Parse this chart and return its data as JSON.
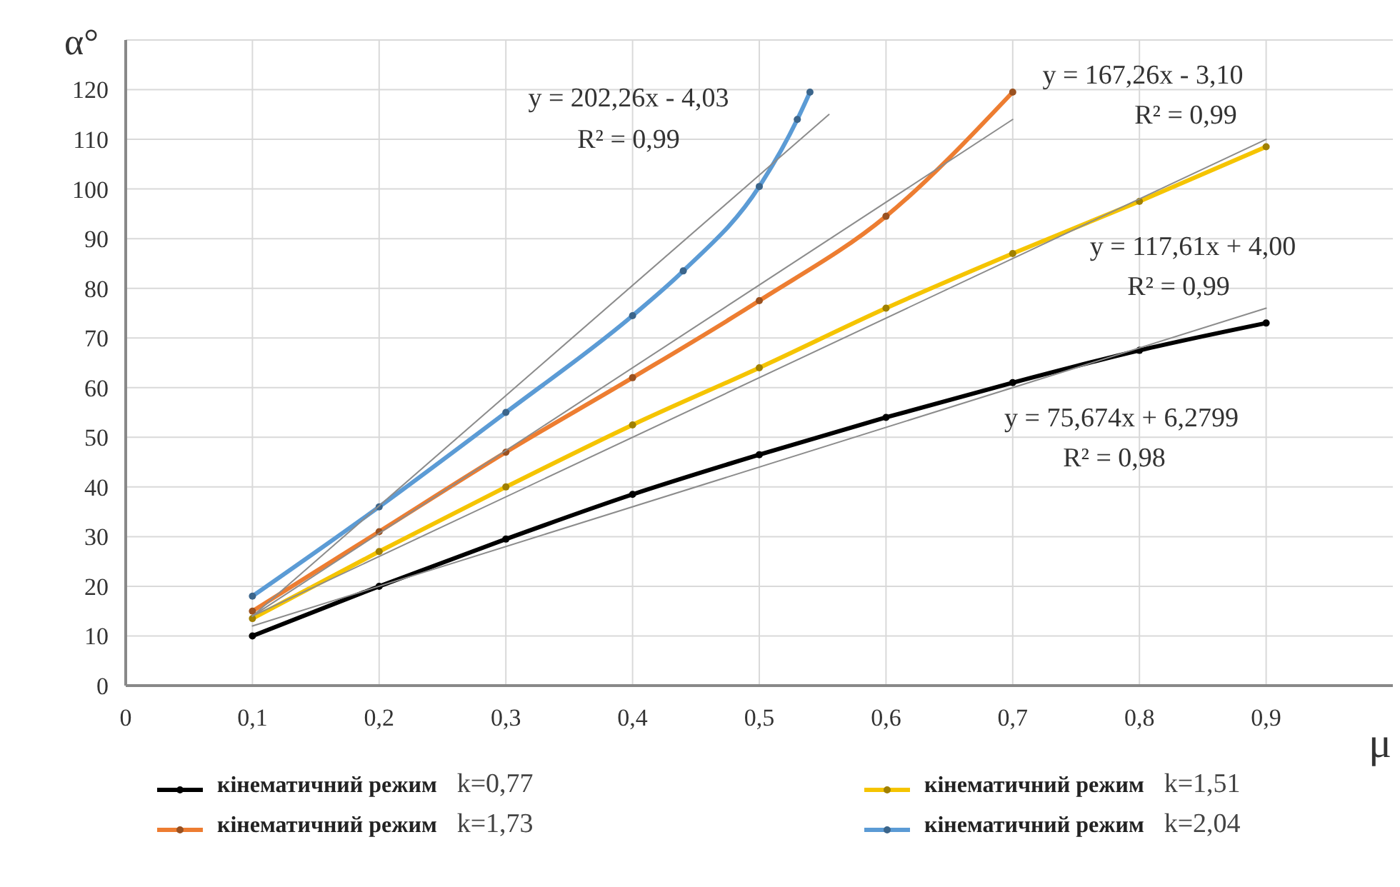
{
  "chart_data": {
    "type": "line",
    "xlabel": "μ",
    "ylabel": "α°",
    "x": [
      0.1,
      0.2,
      0.3,
      0.4,
      0.5,
      0.6,
      0.7,
      0.8,
      0.9
    ],
    "xlim": [
      0,
      1
    ],
    "xticks": [
      0,
      {
        "value": 0.1,
        "label": "0,1"
      },
      {
        "value": 0.2,
        "label": "0,2"
      },
      {
        "value": 0.3,
        "label": "0,3"
      },
      {
        "value": 0.4,
        "label": "0,4"
      },
      {
        "value": 0.5,
        "label": "0,5"
      },
      {
        "value": 0.6,
        "label": "0,6"
      },
      {
        "value": 0.7,
        "label": "0,7"
      },
      {
        "value": 0.8,
        "label": "0,8"
      },
      {
        "value": 0.9,
        "label": "0,9"
      }
    ],
    "ylim": [
      0,
      130
    ],
    "yticks": [
      0,
      10,
      20,
      30,
      40,
      50,
      60,
      70,
      80,
      90,
      100,
      110,
      120
    ],
    "grid": true,
    "legend": "bottom",
    "marker": "circle",
    "line_style": "solid",
    "series": [
      {
        "name": "кінематичний режим k=0,77",
        "color": "#000000",
        "values": [
          10,
          20,
          29.5,
          38.5,
          46.5,
          54,
          61,
          67.5,
          73
        ]
      },
      {
        "name": "кінематичний режим k=1,51",
        "color": "#f5c400",
        "values": [
          13.5,
          27,
          40,
          52.5,
          64,
          76,
          87,
          97.5,
          108.5
        ]
      },
      {
        "name": "кінематичний режим k=1,73",
        "color": "#ed7d31",
        "x": [
          0.1,
          0.2,
          0.3,
          0.4,
          0.5,
          0.6,
          0.7
        ],
        "values": [
          15,
          31,
          47,
          62,
          77.5,
          94.5,
          119.5
        ]
      },
      {
        "name": "кінематичний режим k=2,04",
        "color": "#5b9bd5",
        "x": [
          0.1,
          0.2,
          0.3,
          0.4,
          0.44,
          0.5,
          0.53,
          0.54
        ],
        "values": [
          18,
          36,
          55,
          74.5,
          83.5,
          100.5,
          114,
          119.5
        ]
      },
      {
        "type": "line",
        "marker": "none",
        "color": "#8c8c8c",
        "x": [
          0.1,
          0.9
        ],
        "values": [
          12,
          76
        ]
      },
      {
        "type": "line",
        "marker": "none",
        "color": "#8c8c8c",
        "x": [
          0.1,
          0.9
        ],
        "values": [
          14,
          110
        ]
      },
      {
        "type": "line",
        "marker": "none",
        "color": "#8c8c8c",
        "x": [
          0.1,
          0.7
        ],
        "values": [
          14,
          114
        ]
      },
      {
        "type": "line",
        "marker": "none",
        "color": "#8c8c8c",
        "x": [
          0.1,
          0.555
        ],
        "values": [
          14,
          115
        ]
      }
    ],
    "annotations": [
      "y = 202,26x - 4,03",
      "R² = 0,99",
      "y = 167,26x - 3,10",
      "R² = 0,99",
      "y = 117,61x + 4,00",
      "R² = 0,99",
      "y = 75,674x + 6,2799",
      "R² = 0,98"
    ]
  }
}
